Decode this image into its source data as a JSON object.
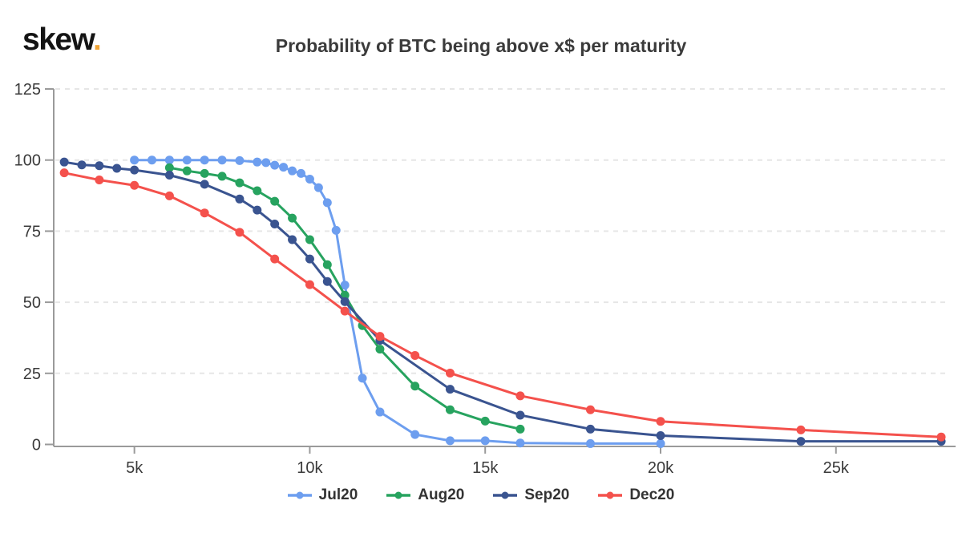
{
  "logo": {
    "text": "skew",
    "dot": "."
  },
  "colors": {
    "title": "#3B3B3B",
    "axis_line": "#9A9A9A",
    "grid": "#E6E6E6",
    "tick_label": "#3A3A3A",
    "logo_text": "#141414",
    "logo_dot": "#F0A436"
  },
  "chart_data": {
    "type": "line",
    "title": "Probability of BTC being above x$ per maturity",
    "legend_position": "bottom",
    "x_axis": {
      "min": 2700,
      "max": 28250,
      "ticks": [
        {
          "value": 5000,
          "label": "5k"
        },
        {
          "value": 10000,
          "label": "10k"
        },
        {
          "value": 15000,
          "label": "15k"
        },
        {
          "value": 20000,
          "label": "20k"
        },
        {
          "value": 25000,
          "label": "25k"
        }
      ],
      "grid": false
    },
    "y_axis": {
      "min": 0,
      "max": 125,
      "ticks": [
        {
          "value": 125,
          "label": "125"
        },
        {
          "value": 100,
          "label": "100"
        },
        {
          "value": 75,
          "label": "75"
        },
        {
          "value": 50,
          "label": "50"
        },
        {
          "value": 25,
          "label": "25"
        },
        {
          "value": 0,
          "label": "0"
        }
      ],
      "grid": true,
      "grid_style": "dashed"
    },
    "series": [
      {
        "name": "Jul20",
        "color": "#6D9EEF",
        "points": [
          [
            5000,
            100
          ],
          [
            5500,
            100
          ],
          [
            6000,
            100
          ],
          [
            6500,
            100
          ],
          [
            7000,
            100
          ],
          [
            7500,
            100
          ],
          [
            8000,
            99.8
          ],
          [
            8500,
            99.3
          ],
          [
            8750,
            99.1
          ],
          [
            9000,
            98.2
          ],
          [
            9250,
            97.5
          ],
          [
            9500,
            96.2
          ],
          [
            9750,
            95.3
          ],
          [
            10000,
            93.3
          ],
          [
            10250,
            90.3
          ],
          [
            10500,
            85
          ],
          [
            10750,
            75.3
          ],
          [
            11000,
            56
          ],
          [
            11500,
            23.3
          ],
          [
            12000,
            11.4
          ],
          [
            13000,
            3.5
          ],
          [
            14000,
            1.3
          ],
          [
            15000,
            1.3
          ],
          [
            16000,
            0.5
          ],
          [
            18000,
            0.3
          ],
          [
            20000,
            0.3
          ]
        ]
      },
      {
        "name": "Aug20",
        "color": "#27A35F",
        "points": [
          [
            6000,
            97.3
          ],
          [
            6500,
            96.2
          ],
          [
            7000,
            95.3
          ],
          [
            7500,
            94.3
          ],
          [
            8000,
            92
          ],
          [
            8500,
            89.2
          ],
          [
            9000,
            85.5
          ],
          [
            9500,
            79.6
          ],
          [
            10000,
            72
          ],
          [
            10500,
            63.2
          ],
          [
            11000,
            52.5
          ],
          [
            11500,
            41.8
          ],
          [
            12000,
            33.5
          ],
          [
            13000,
            20.5
          ],
          [
            14000,
            12.2
          ],
          [
            15000,
            8.2
          ],
          [
            16000,
            5.4
          ]
        ]
      },
      {
        "name": "Sep20",
        "color": "#3A5490",
        "points": [
          [
            3000,
            99.3
          ],
          [
            3500,
            98.3
          ],
          [
            4000,
            98
          ],
          [
            4500,
            97.1
          ],
          [
            5000,
            96.5
          ],
          [
            6000,
            94.7
          ],
          [
            7000,
            91.5
          ],
          [
            8000,
            86.3
          ],
          [
            8500,
            82.4
          ],
          [
            9000,
            77.5
          ],
          [
            9500,
            72
          ],
          [
            10000,
            65.2
          ],
          [
            10500,
            57.3
          ],
          [
            11000,
            50.2
          ],
          [
            12000,
            36.6
          ],
          [
            14000,
            19.4
          ],
          [
            16000,
            10.3
          ],
          [
            18000,
            5.4
          ],
          [
            20000,
            3.1
          ],
          [
            24000,
            1.1
          ],
          [
            28000,
            1.1
          ]
        ]
      },
      {
        "name": "Dec20",
        "color": "#F4514C",
        "points": [
          [
            3000,
            95.5
          ],
          [
            4000,
            93
          ],
          [
            5000,
            91.1
          ],
          [
            6000,
            87.4
          ],
          [
            7000,
            81.4
          ],
          [
            8000,
            74.6
          ],
          [
            9000,
            65.2
          ],
          [
            10000,
            56.2
          ],
          [
            11000,
            46.9
          ],
          [
            12000,
            38
          ],
          [
            13000,
            31.3
          ],
          [
            14000,
            25.1
          ],
          [
            16000,
            17.1
          ],
          [
            18000,
            12.2
          ],
          [
            20000,
            8.1
          ],
          [
            24000,
            5.1
          ],
          [
            28000,
            2.6
          ]
        ]
      }
    ]
  }
}
